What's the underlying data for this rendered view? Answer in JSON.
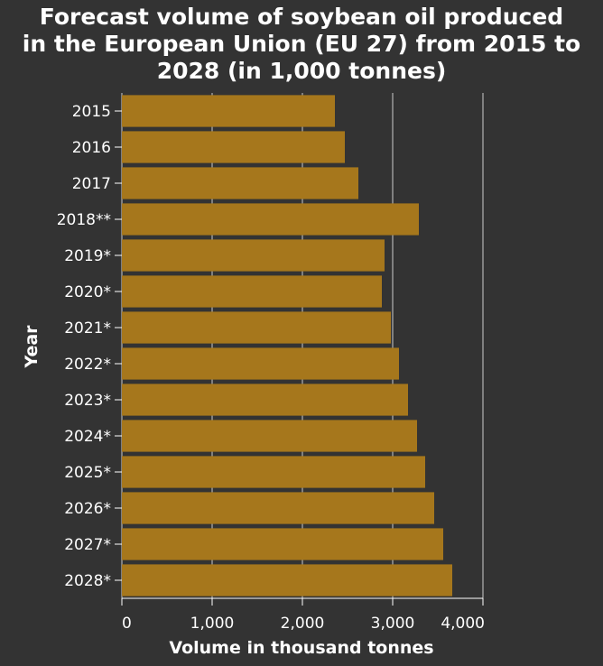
{
  "chart_data": {
    "type": "bar",
    "orientation": "horizontal",
    "title_lines": [
      "Forecast volume of soybean oil produced",
      "in the European Union (EU 27) from 2015 to",
      "2028 (in 1,000 tonnes)"
    ],
    "xlabel": "Volume in thousand tonnes",
    "ylabel": "Year",
    "xlim": [
      0,
      4000
    ],
    "xticks": [
      0,
      1000,
      2000,
      3000,
      4000
    ],
    "xtick_labels": [
      "0",
      "1,000",
      "2,000",
      "3,000",
      "4,000"
    ],
    "categories": [
      "2015",
      "2016",
      "2017",
      "2018**",
      "2019*",
      "2020*",
      "2021*",
      "2022*",
      "2023*",
      "2024*",
      "2025*",
      "2026*",
      "2027*",
      "2028*"
    ],
    "values": [
      2360,
      2470,
      2620,
      3290,
      2910,
      2880,
      2980,
      3070,
      3170,
      3270,
      3360,
      3460,
      3560,
      3660
    ],
    "grid": "vertical",
    "bar_color": "#a6771c",
    "background_color": "#333333"
  }
}
